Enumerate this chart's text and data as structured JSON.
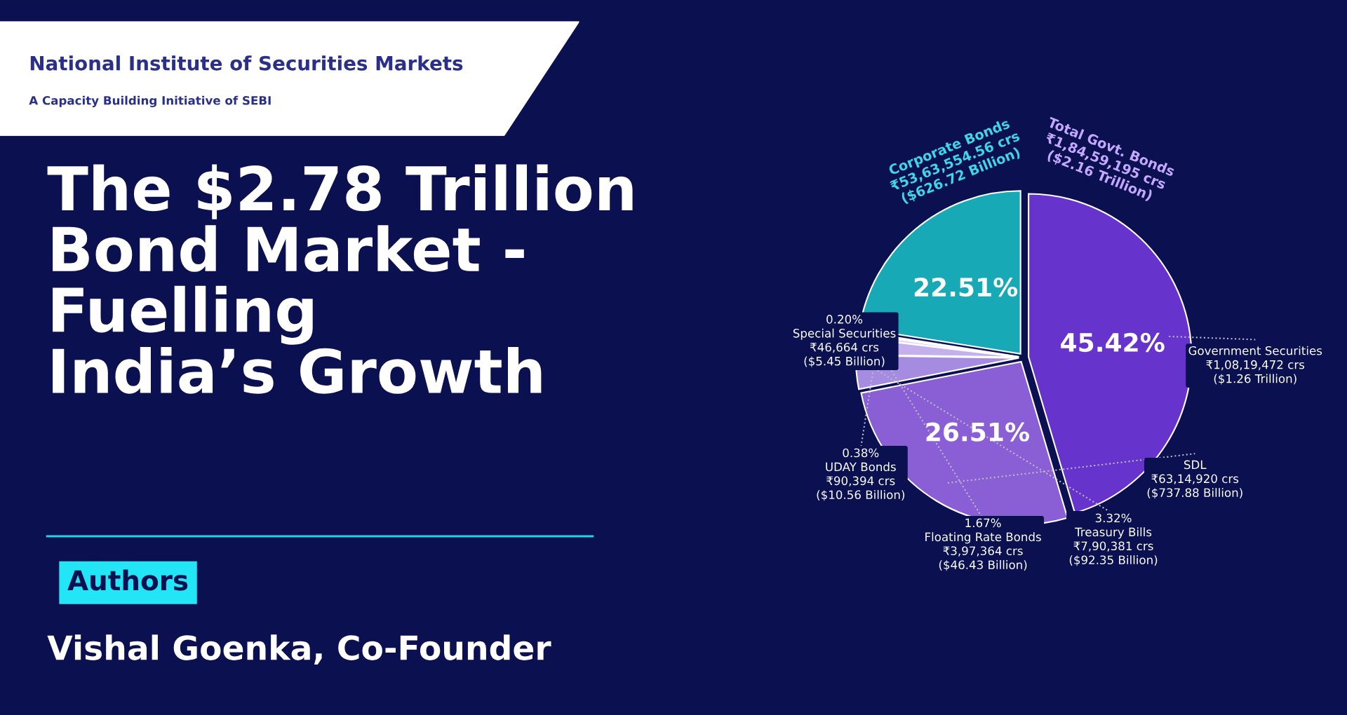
{
  "chart_data": {
    "type": "pie",
    "title": "The $2.78 Trillion\nBond Market -\nFuelling\nIndia’s Growth",
    "categories": [
      "Government Securities\n₹1,08,19,472 crs\n($1.26 Trillion)",
      "SDL\n₹63,14,920 crs\n($737.88 Billion)",
      "Treasury Bills\n₹7,90,381 crs\n($92.35 Billion)",
      "Floating Rate Bonds\n₹3,97,364 crs\n($46.43 Billion)",
      "UDAY Bonds\n₹90,394 crs\n($10.56 Billion)",
      "Special Securities\n₹46,664 crs\n($5.45 Billion)",
      "Corporate Bonds\n₹53,63,554.56 crs\n($626.72 Billion)"
    ],
    "values": [
      45.42,
      26.51,
      3.32,
      1.67,
      0.38,
      0.2,
      22.51
    ],
    "colors": [
      "#6633cc",
      "#8a5fd6",
      "#a68ce0",
      "#c3b0ec",
      "#ddd2f5",
      "#e8e0f8",
      "#17a9b5"
    ],
    "value_labels": [
      "45.42%",
      "26.51%",
      "3.32%",
      "1.67%",
      "0.38%",
      "0.20%",
      "22.51%"
    ],
    "annotations": [
      "National Institute of Securities Markets",
      "A Capacity Building Initiative of SEBI",
      "Authors",
      "Vishal Goenka, Co-Founder",
      "Total Govt. Bonds\n₹1,84,59,195 crs\n($2.16 Trillion)"
    ],
    "legend": false
  }
}
